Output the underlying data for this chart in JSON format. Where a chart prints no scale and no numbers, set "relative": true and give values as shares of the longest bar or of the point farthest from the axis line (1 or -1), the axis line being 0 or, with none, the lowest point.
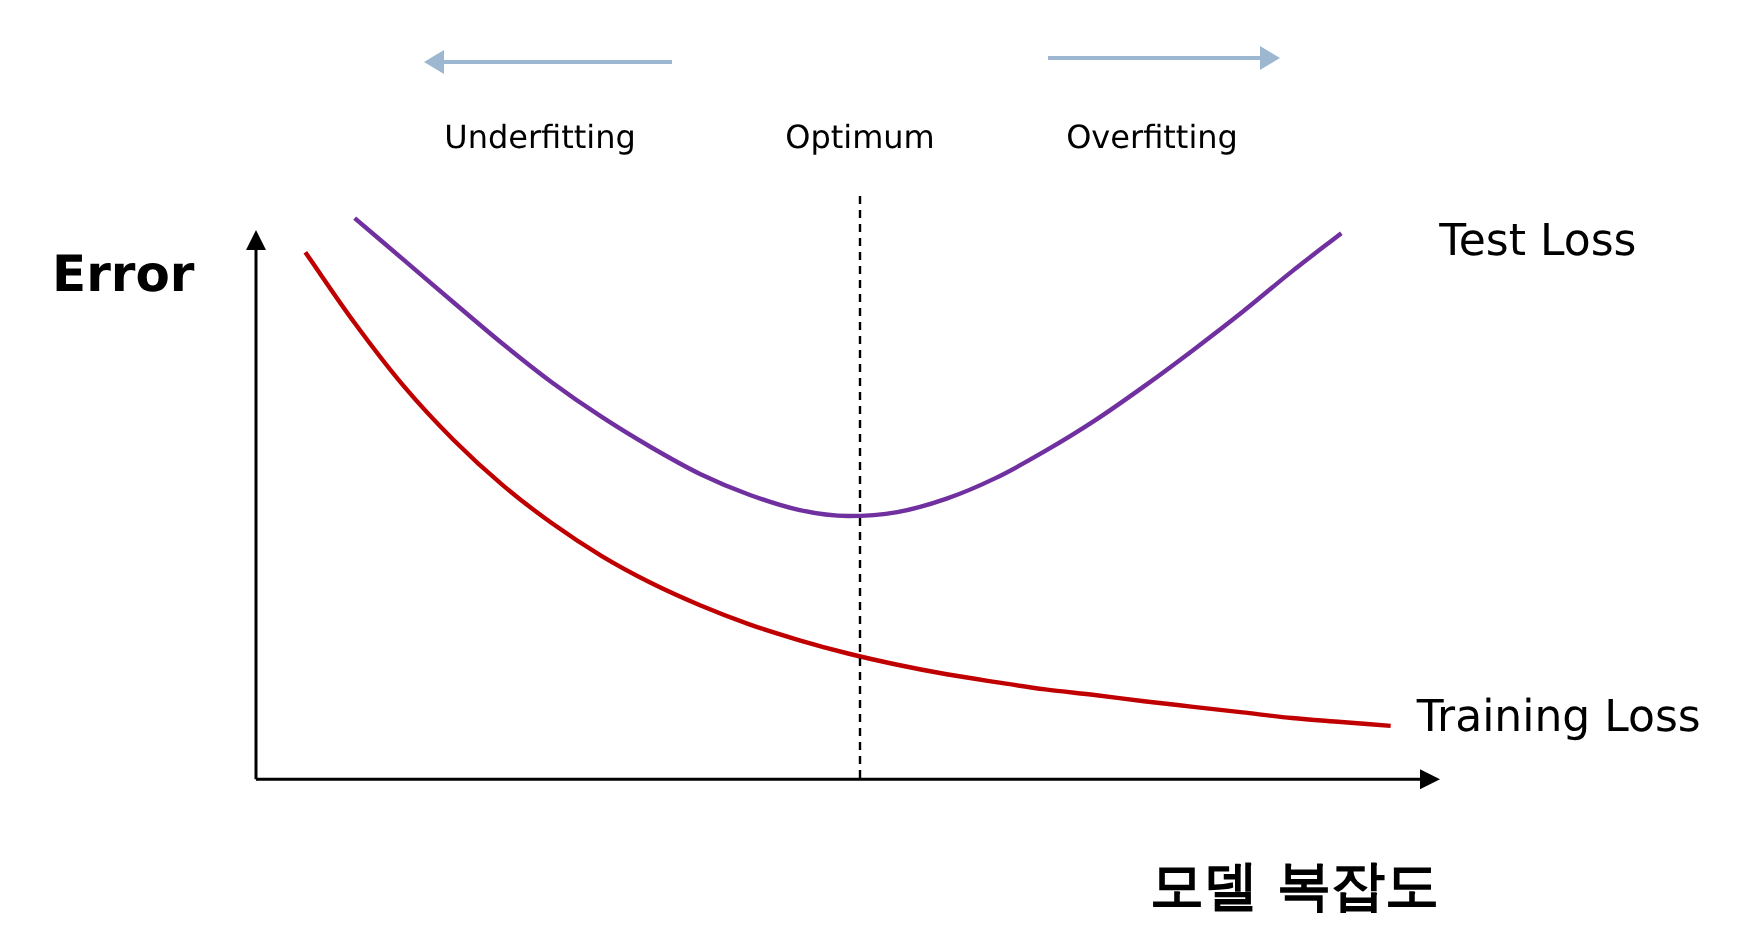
{
  "chart_data": {
    "type": "line",
    "relative": true,
    "xlabel": "모델 복잡도",
    "ylabel": "Error",
    "categories": [
      null,
      null,
      null,
      null,
      null,
      null,
      null,
      null,
      null,
      null,
      null,
      null,
      null,
      null,
      null,
      null,
      null,
      null,
      null,
      null,
      null,
      null,
      null,
      null,
      null
    ],
    "series": [
      {
        "name": "Test Loss",
        "color": "#7030a0",
        "values": [
          null,
          null,
          1.0,
          0.925,
          0.85,
          0.776,
          0.707,
          0.646,
          0.592,
          0.544,
          0.507,
          0.48,
          0.469,
          0.476,
          0.5,
          0.537,
          0.585,
          0.639,
          0.7,
          0.765,
          0.833,
          0.905,
          0.973,
          null,
          null
        ]
      },
      {
        "name": "Training Loss",
        "color": "#c00000",
        "values": [
          null,
          0.939,
          0.813,
          0.7,
          0.605,
          0.524,
          0.456,
          0.398,
          0.35,
          0.31,
          0.276,
          0.248,
          0.224,
          0.204,
          0.187,
          0.173,
          0.16,
          0.15,
          0.139,
          0.129,
          0.119,
          0.109,
          0.102,
          0.095,
          null
        ]
      }
    ],
    "annotations": [
      "Underfitting",
      "Optimum",
      "Overfitting"
    ],
    "grid": false,
    "legend": false,
    "marker": "none",
    "line_style": "solid"
  }
}
